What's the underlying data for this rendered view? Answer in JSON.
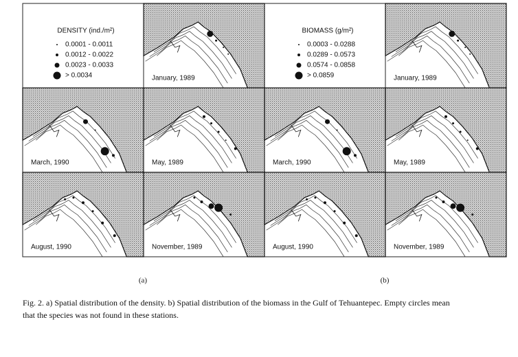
{
  "panels": [
    {
      "label": "(a)",
      "legend": {
        "title": "DENSITY (ind./m²)",
        "items": [
          "0.0001 - 0.0011",
          "0.0012 - 0.0022",
          "0.0023 - 0.0033",
          "> 0.0034"
        ]
      },
      "maps": [
        "January, 1989",
        "March, 1990",
        "May, 1989",
        "August, 1990",
        "November, 1989"
      ]
    },
    {
      "label": "(b)",
      "legend": {
        "title": "BIOMASS (g/m²)",
        "items": [
          "0.0003 - 0.0288",
          "0.0289 - 0.0573",
          "0.0574 - 0.0858",
          "> 0.0859"
        ]
      },
      "maps": [
        "January, 1989",
        "March, 1990",
        "May, 1989",
        "August, 1990",
        "November, 1989"
      ]
    }
  ],
  "caption": [
    "Fig. 2. a) Spatial distribution of the density. b) Spatial distribution of the biomass in the Gulf of Tehuantepec. Empty circles mean",
    "that the species was not found in these stations."
  ]
}
